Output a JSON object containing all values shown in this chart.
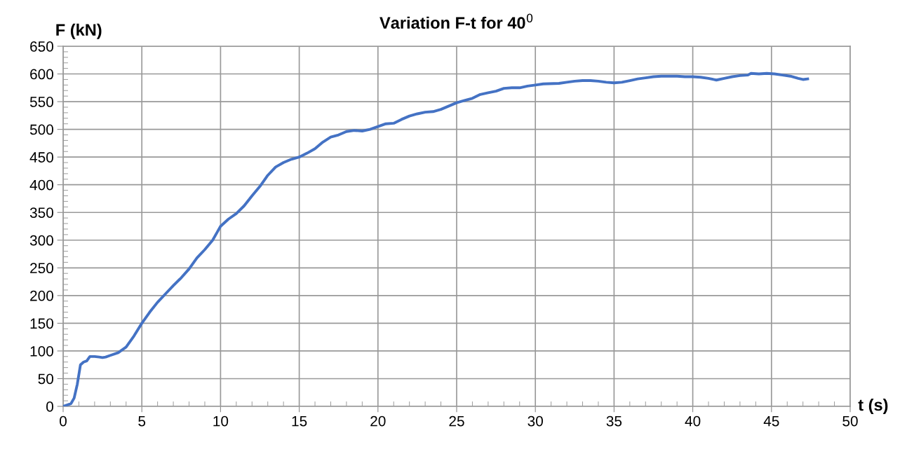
{
  "chart_data": {
    "type": "line",
    "title": "Variation F-t for 40$^{0}$",
    "xlabel": "t (s)",
    "ylabel": "F (kN)",
    "x": [
      0,
      0.5,
      0.7,
      0.9,
      1.1,
      1.3,
      1.5,
      1.7,
      2.0,
      2.3,
      2.5,
      2.7,
      3.0,
      3.5,
      4.0,
      4.5,
      5.0,
      5.5,
      6.0,
      6.5,
      7.0,
      7.5,
      8.0,
      8.5,
      9.0,
      9.5,
      9.8,
      10.0,
      10.5,
      11.0,
      11.5,
      12.0,
      12.5,
      13.0,
      13.5,
      14.0,
      14.5,
      15.0,
      15.5,
      16.0,
      16.5,
      17.0,
      17.5,
      18.0,
      18.5,
      19.0,
      19.5,
      20.0,
      20.5,
      21.0,
      21.5,
      22.0,
      22.5,
      23.0,
      23.5,
      24.0,
      24.5,
      25.0,
      25.5,
      26.0,
      26.5,
      27.0,
      27.5,
      28.0,
      28.5,
      29.0,
      29.5,
      30.0,
      30.5,
      31.5,
      32.0,
      32.5,
      33.0,
      33.5,
      34.0,
      34.5,
      35.0,
      35.5,
      36.0,
      36.5,
      37.0,
      37.5,
      38.0,
      39.0,
      39.5,
      40.0,
      40.5,
      41.0,
      41.5,
      42.0,
      42.5,
      43.0,
      43.5,
      43.7,
      44.2,
      44.7,
      45.2,
      45.7,
      46.2,
      46.7,
      47.0,
      47.3
    ],
    "series": [
      {
        "color": "#4472c4",
        "values": [
          0,
          5,
          15,
          40,
          75,
          80,
          82,
          90,
          90,
          89,
          88,
          89,
          92,
          97,
          107,
          127,
          150,
          170,
          188,
          203,
          218,
          232,
          248,
          268,
          283,
          300,
          315,
          325,
          338,
          348,
          362,
          380,
          397,
          417,
          432,
          440,
          446,
          450,
          457,
          465,
          477,
          486,
          490,
          496,
          498,
          497,
          500,
          505,
          510,
          511,
          518,
          524,
          528,
          531,
          532,
          536,
          542,
          548,
          552,
          556,
          563,
          566,
          569,
          574,
          575,
          575,
          578,
          580,
          582,
          583,
          585,
          587,
          588,
          588,
          587,
          585,
          584,
          585,
          588,
          591,
          593,
          595,
          596,
          596,
          595,
          595,
          594,
          592,
          589,
          592,
          595,
          597,
          598,
          601,
          600,
          601,
          600,
          598,
          596,
          592,
          590,
          591
        ]
      }
    ],
    "xlim": [
      0,
      50
    ],
    "xticks": [
      0,
      5,
      10,
      15,
      20,
      25,
      30,
      35,
      40,
      45,
      50
    ],
    "ylim": [
      0,
      650
    ],
    "yticks": [
      0,
      50,
      100,
      150,
      200,
      250,
      300,
      350,
      400,
      450,
      500,
      550,
      600,
      650
    ],
    "grid": true,
    "legend": false,
    "marker": "none",
    "line_style": "solid"
  }
}
